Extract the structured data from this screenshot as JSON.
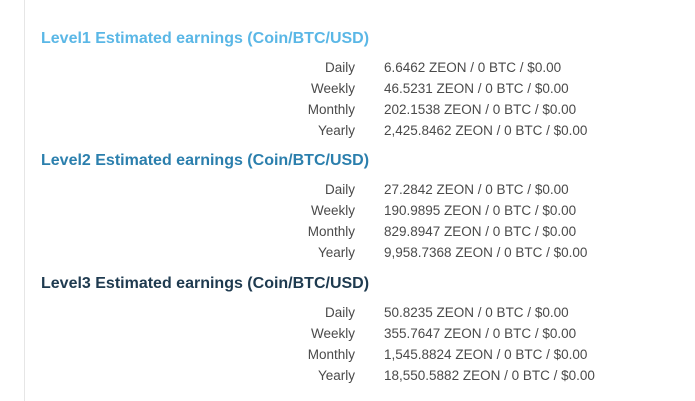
{
  "levels": [
    {
      "title": "Level1 Estimated earnings (Coin/BTC/USD)",
      "color": "#5ab7e6",
      "rows": [
        {
          "label": "Daily",
          "value": "6.6462 ZEON / 0 BTC / $0.00"
        },
        {
          "label": "Weekly",
          "value": "46.5231 ZEON / 0 BTC / $0.00"
        },
        {
          "label": "Monthly",
          "value": "202.1538 ZEON / 0 BTC / $0.00"
        },
        {
          "label": "Yearly",
          "value": "2,425.8462 ZEON / 0 BTC / $0.00"
        }
      ]
    },
    {
      "title": "Level2 Estimated earnings (Coin/BTC/USD)",
      "color": "#2b7fad",
      "rows": [
        {
          "label": "Daily",
          "value": "27.2842 ZEON / 0 BTC / $0.00"
        },
        {
          "label": "Weekly",
          "value": "190.9895 ZEON / 0 BTC / $0.00"
        },
        {
          "label": "Monthly",
          "value": "829.8947 ZEON / 0 BTC / $0.00"
        },
        {
          "label": "Yearly",
          "value": "9,958.7368 ZEON / 0 BTC / $0.00"
        }
      ]
    },
    {
      "title": "Level3 Estimated earnings (Coin/BTC/USD)",
      "color": "#1e3a4f",
      "rows": [
        {
          "label": "Daily",
          "value": "50.8235 ZEON / 0 BTC / $0.00"
        },
        {
          "label": "Weekly",
          "value": "355.7647 ZEON / 0 BTC / $0.00"
        },
        {
          "label": "Monthly",
          "value": "1,545.8824 ZEON / 0 BTC / $0.00"
        },
        {
          "label": "Yearly",
          "value": "18,550.5882 ZEON / 0 BTC / $0.00"
        }
      ]
    }
  ]
}
